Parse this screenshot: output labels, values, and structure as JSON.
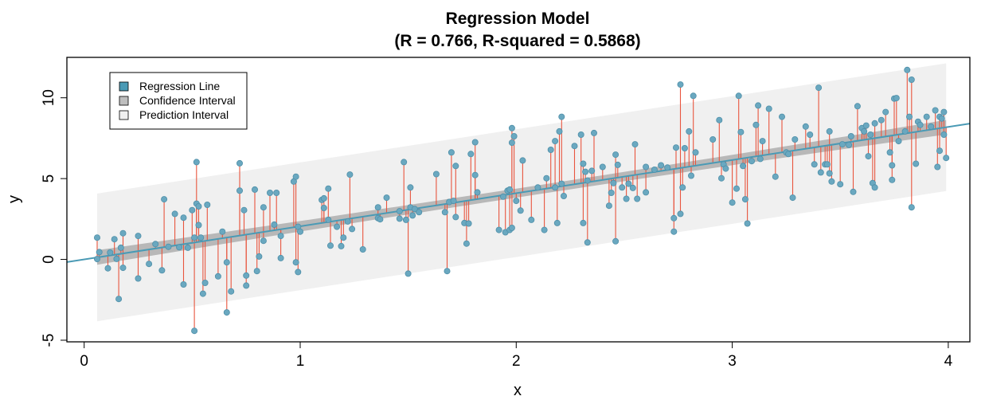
{
  "chart_data": {
    "type": "scatter",
    "title": "Regression Model",
    "subtitle": "(R = 0.766, R-squared = 0.5868)",
    "xlabel": "x",
    "ylabel": "y",
    "xlim": [
      -0.08,
      4.1
    ],
    "ylim": [
      -5.1,
      12.5
    ],
    "x_ticks": [
      0,
      1,
      2,
      3,
      4
    ],
    "y_ticks": [
      -5,
      0,
      5,
      10
    ],
    "legend_position": "top-left",
    "grid": false,
    "regression": {
      "intercept": 0.0,
      "slope": 2.05
    },
    "confidence_band": {
      "half_width_left": 0.45,
      "half_width_right": 0.45,
      "half_width_center": 0.28
    },
    "prediction_band": {
      "half_width": 3.95
    },
    "colors": {
      "regression_line": "#4a9ab5",
      "confidence_fill": "#b8b8b8",
      "prediction_fill": "#f0f0f0",
      "residual": "#e8553e",
      "point_fill": "#6aa8c0",
      "point_edge": "#4f8fa8"
    },
    "legend": [
      {
        "label": "Regression Line",
        "swatch": "#4a9ab5"
      },
      {
        "label": "Confidence Interval",
        "swatch": "#bebebe"
      },
      {
        "label": "Prediction Interval",
        "swatch": "#f0f0f0"
      }
    ],
    "points": [
      [
        0.06,
        1.35
      ],
      [
        0.06,
        0.02
      ],
      [
        0.07,
        0.45
      ],
      [
        0.11,
        -0.55
      ],
      [
        0.12,
        0.42
      ],
      [
        0.14,
        1.25
      ],
      [
        0.15,
        0.03
      ],
      [
        0.16,
        -2.45
      ],
      [
        0.17,
        0.72
      ],
      [
        0.18,
        -0.52
      ],
      [
        0.18,
        1.62
      ],
      [
        0.25,
        1.45
      ],
      [
        0.25,
        -1.18
      ],
      [
        0.3,
        -0.28
      ],
      [
        0.33,
        0.95
      ],
      [
        0.36,
        -0.68
      ],
      [
        0.37,
        3.72
      ],
      [
        0.39,
        0.78
      ],
      [
        0.42,
        2.82
      ],
      [
        0.44,
        0.75
      ],
      [
        0.46,
        -1.55
      ],
      [
        0.46,
        2.58
      ],
      [
        0.48,
        0.72
      ],
      [
        0.5,
        3.05
      ],
      [
        0.51,
        1.35
      ],
      [
        0.51,
        -4.42
      ],
      [
        0.52,
        3.45
      ],
      [
        0.52,
        6.02
      ],
      [
        0.53,
        3.28
      ],
      [
        0.53,
        2.12
      ],
      [
        0.54,
        1.35
      ],
      [
        0.55,
        -2.12
      ],
      [
        0.56,
        -1.45
      ],
      [
        0.57,
        3.38
      ],
      [
        0.62,
        -1.05
      ],
      [
        0.64,
        1.72
      ],
      [
        0.66,
        -3.28
      ],
      [
        0.66,
        -0.18
      ],
      [
        0.68,
        -1.98
      ],
      [
        0.72,
        5.95
      ],
      [
        0.72,
        4.25
      ],
      [
        0.74,
        3.05
      ],
      [
        0.75,
        -1.0
      ],
      [
        0.75,
        -1.62
      ],
      [
        0.79,
        4.32
      ],
      [
        0.8,
        -0.72
      ],
      [
        0.81,
        0.18
      ],
      [
        0.83,
        3.22
      ],
      [
        0.83,
        1.15
      ],
      [
        0.86,
        4.12
      ],
      [
        0.88,
        2.15
      ],
      [
        0.89,
        4.12
      ],
      [
        0.91,
        1.45
      ],
      [
        0.91,
        0.08
      ],
      [
        0.97,
        4.82
      ],
      [
        0.98,
        5.12
      ],
      [
        0.98,
        -0.18
      ],
      [
        0.99,
        -0.78
      ],
      [
        0.99,
        2.02
      ],
      [
        1.0,
        1.72
      ],
      [
        1.1,
        3.68
      ],
      [
        1.11,
        3.78
      ],
      [
        1.11,
        3.18
      ],
      [
        1.13,
        4.38
      ],
      [
        1.13,
        2.45
      ],
      [
        1.14,
        0.85
      ],
      [
        1.17,
        2.02
      ],
      [
        1.19,
        0.82
      ],
      [
        1.2,
        1.35
      ],
      [
        1.22,
        2.35
      ],
      [
        1.23,
        5.25
      ],
      [
        1.24,
        1.88
      ],
      [
        1.29,
        0.62
      ],
      [
        1.36,
        2.55
      ],
      [
        1.36,
        3.22
      ],
      [
        1.37,
        2.48
      ],
      [
        1.4,
        3.82
      ],
      [
        1.46,
        2.98
      ],
      [
        1.46,
        2.52
      ],
      [
        1.48,
        6.02
      ],
      [
        1.49,
        2.45
      ],
      [
        1.5,
        -0.88
      ],
      [
        1.51,
        4.45
      ],
      [
        1.51,
        3.22
      ],
      [
        1.52,
        2.72
      ],
      [
        1.53,
        3.12
      ],
      [
        1.55,
        2.92
      ],
      [
        1.63,
        5.28
      ],
      [
        1.67,
        2.92
      ],
      [
        1.68,
        -0.72
      ],
      [
        1.69,
        3.55
      ],
      [
        1.7,
        6.62
      ],
      [
        1.71,
        3.62
      ],
      [
        1.72,
        2.62
      ],
      [
        1.72,
        5.78
      ],
      [
        1.76,
        2.25
      ],
      [
        1.77,
        0.98
      ],
      [
        1.78,
        2.22
      ],
      [
        1.79,
        6.52
      ],
      [
        1.81,
        7.25
      ],
      [
        1.81,
        5.22
      ],
      [
        1.82,
        4.15
      ],
      [
        1.92,
        1.82
      ],
      [
        1.94,
        3.88
      ],
      [
        1.95,
        1.68
      ],
      [
        1.96,
        4.25
      ],
      [
        1.97,
        4.32
      ],
      [
        1.97,
        1.82
      ],
      [
        1.98,
        7.22
      ],
      [
        1.98,
        8.12
      ],
      [
        1.98,
        1.95
      ],
      [
        1.99,
        7.62
      ],
      [
        2.0,
        3.62
      ],
      [
        2.02,
        3.02
      ],
      [
        2.03,
        6.12
      ],
      [
        2.07,
        2.45
      ],
      [
        2.1,
        4.45
      ],
      [
        2.13,
        1.82
      ],
      [
        2.14,
        5.02
      ],
      [
        2.16,
        6.78
      ],
      [
        2.18,
        7.32
      ],
      [
        2.18,
        4.45
      ],
      [
        2.19,
        2.25
      ],
      [
        2.2,
        7.92
      ],
      [
        2.21,
        4.68
      ],
      [
        2.21,
        8.82
      ],
      [
        2.22,
        3.92
      ],
      [
        2.27,
        7.02
      ],
      [
        2.3,
        7.72
      ],
      [
        2.31,
        5.92
      ],
      [
        2.31,
        2.25
      ],
      [
        2.32,
        5.42
      ],
      [
        2.33,
        4.88
      ],
      [
        2.33,
        1.05
      ],
      [
        2.35,
        5.48
      ],
      [
        2.36,
        7.82
      ],
      [
        2.4,
        5.72
      ],
      [
        2.43,
        3.32
      ],
      [
        2.44,
        4.12
      ],
      [
        2.45,
        4.72
      ],
      [
        2.46,
        6.48
      ],
      [
        2.46,
        1.12
      ],
      [
        2.47,
        5.85
      ],
      [
        2.49,
        4.45
      ],
      [
        2.51,
        3.75
      ],
      [
        2.52,
        4.68
      ],
      [
        2.54,
        4.42
      ],
      [
        2.55,
        7.12
      ],
      [
        2.56,
        3.75
      ],
      [
        2.6,
        5.72
      ],
      [
        2.6,
        4.15
      ],
      [
        2.64,
        5.55
      ],
      [
        2.67,
        5.82
      ],
      [
        2.7,
        5.68
      ],
      [
        2.73,
        2.55
      ],
      [
        2.73,
        1.72
      ],
      [
        2.74,
        6.92
      ],
      [
        2.76,
        10.82
      ],
      [
        2.77,
        4.45
      ],
      [
        2.78,
        6.88
      ],
      [
        2.8,
        7.92
      ],
      [
        2.82,
        10.12
      ],
      [
        2.83,
        6.62
      ],
      [
        2.76,
        2.82
      ],
      [
        2.81,
        5.18
      ],
      [
        2.91,
        7.42
      ],
      [
        2.94,
        8.62
      ],
      [
        2.95,
        5.02
      ],
      [
        2.96,
        5.88
      ],
      [
        2.97,
        5.62
      ],
      [
        3.0,
        3.52
      ],
      [
        3.02,
        4.38
      ],
      [
        3.03,
        10.12
      ],
      [
        3.04,
        7.88
      ],
      [
        3.05,
        5.78
      ],
      [
        3.06,
        3.72
      ],
      [
        3.07,
        2.22
      ],
      [
        3.09,
        6.08
      ],
      [
        3.11,
        8.32
      ],
      [
        3.12,
        9.52
      ],
      [
        3.13,
        6.22
      ],
      [
        3.14,
        7.32
      ],
      [
        3.17,
        9.32
      ],
      [
        3.2,
        5.12
      ],
      [
        3.23,
        8.82
      ],
      [
        3.25,
        6.62
      ],
      [
        3.26,
        6.52
      ],
      [
        3.28,
        3.82
      ],
      [
        3.29,
        7.42
      ],
      [
        3.34,
        8.22
      ],
      [
        3.36,
        7.72
      ],
      [
        3.38,
        5.88
      ],
      [
        3.4,
        10.62
      ],
      [
        3.41,
        5.38
      ],
      [
        3.43,
        5.88
      ],
      [
        3.44,
        5.88
      ],
      [
        3.45,
        7.92
      ],
      [
        3.45,
        5.32
      ],
      [
        3.46,
        4.82
      ],
      [
        3.5,
        4.65
      ],
      [
        3.51,
        7.12
      ],
      [
        3.54,
        7.08
      ],
      [
        3.55,
        7.62
      ],
      [
        3.56,
        4.18
      ],
      [
        3.58,
        9.48
      ],
      [
        3.6,
        8.12
      ],
      [
        3.61,
        7.92
      ],
      [
        3.62,
        8.28
      ],
      [
        3.63,
        6.38
      ],
      [
        3.64,
        7.72
      ],
      [
        3.65,
        4.72
      ],
      [
        3.66,
        4.45
      ],
      [
        3.66,
        8.42
      ],
      [
        3.69,
        8.62
      ],
      [
        3.71,
        9.12
      ],
      [
        3.73,
        6.62
      ],
      [
        3.74,
        5.82
      ],
      [
        3.74,
        4.92
      ],
      [
        3.75,
        9.95
      ],
      [
        3.76,
        9.98
      ],
      [
        3.77,
        7.32
      ],
      [
        3.8,
        7.92
      ],
      [
        3.81,
        11.72
      ],
      [
        3.82,
        8.82
      ],
      [
        3.83,
        3.22
      ],
      [
        3.83,
        11.12
      ],
      [
        3.85,
        5.92
      ],
      [
        3.86,
        8.52
      ],
      [
        3.87,
        8.32
      ],
      [
        3.9,
        8.82
      ],
      [
        3.92,
        8.22
      ],
      [
        3.94,
        9.22
      ],
      [
        3.95,
        5.72
      ],
      [
        3.96,
        6.72
      ],
      [
        3.96,
        8.82
      ],
      [
        3.97,
        8.72
      ],
      [
        3.98,
        9.12
      ],
      [
        3.98,
        7.72
      ],
      [
        3.99,
        6.28
      ]
    ]
  }
}
